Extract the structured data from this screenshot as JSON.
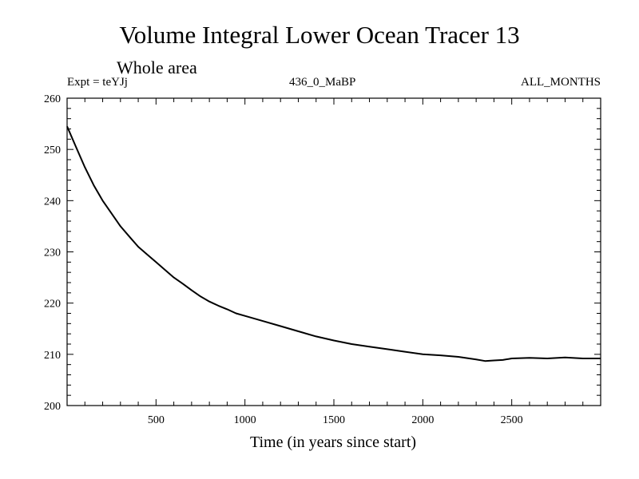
{
  "chart_data": {
    "type": "line",
    "title": "Volume Integral Lower Ocean Tracer 13",
    "subtitle": "Whole area",
    "header_left": "Expt = teYJj",
    "header_center": "436_0_MaBP",
    "header_right": "ALL_MONTHS",
    "xlabel": "Time (in years since start)",
    "ylabel": "",
    "xlim": [
      0,
      3000
    ],
    "ylim": [
      200,
      260
    ],
    "xticks": [
      500,
      1000,
      1500,
      2000,
      2500
    ],
    "yticks": [
      200,
      210,
      220,
      230,
      240,
      250,
      260
    ],
    "grid": false,
    "series": [
      {
        "name": "Volume Integral Lower Ocean Tracer 13",
        "x": [
          0,
          50,
          100,
          150,
          200,
          250,
          300,
          350,
          400,
          450,
          500,
          550,
          600,
          650,
          700,
          750,
          800,
          850,
          900,
          950,
          1000,
          1100,
          1200,
          1300,
          1400,
          1500,
          1600,
          1700,
          1800,
          1900,
          2000,
          2100,
          2200,
          2300,
          2350,
          2400,
          2450,
          2500,
          2600,
          2700,
          2800,
          2900,
          3000
        ],
        "y": [
          254.5,
          250.5,
          246.5,
          243.0,
          240.0,
          237.5,
          235.0,
          233.0,
          231.0,
          229.5,
          228.0,
          226.5,
          225.0,
          223.8,
          222.5,
          221.3,
          220.3,
          219.5,
          218.8,
          218.0,
          217.5,
          216.5,
          215.5,
          214.5,
          213.5,
          212.7,
          212.0,
          211.5,
          211.0,
          210.5,
          210.0,
          209.8,
          209.5,
          209.0,
          208.7,
          208.8,
          208.9,
          209.2,
          209.3,
          209.2,
          209.4,
          209.2,
          209.2
        ]
      }
    ]
  }
}
